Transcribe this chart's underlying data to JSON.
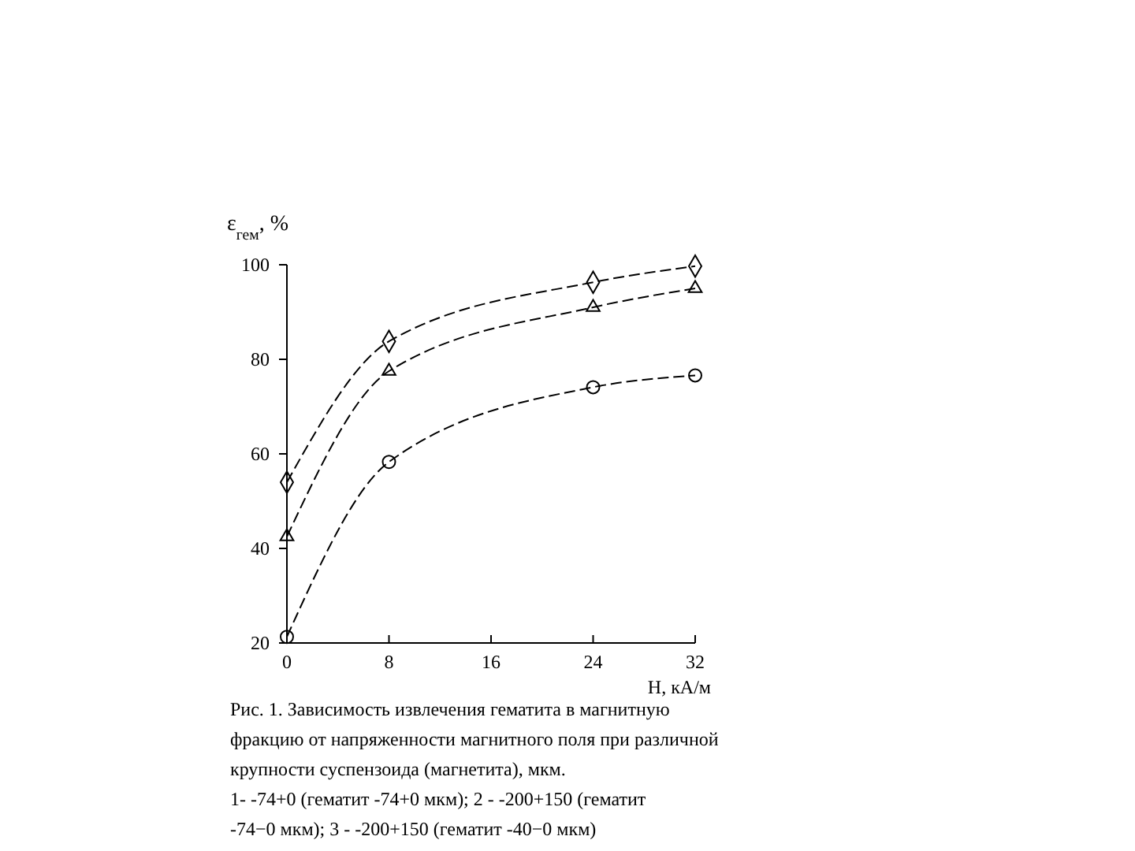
{
  "chart_data": {
    "type": "line",
    "ylabel": "ε$_{гем}$, %",
    "xlabel": "H, кА/м",
    "x": [
      0,
      8,
      24,
      32
    ],
    "xlim": [
      0,
      32
    ],
    "xticks": [
      0,
      8,
      16,
      24,
      32
    ],
    "ylim": [
      20,
      100
    ],
    "yticks": [
      20,
      40,
      60,
      80,
      100
    ],
    "series": [
      {
        "color": "#000000",
        "marker": "diamond",
        "values": [
          54,
          83.8,
          96.3,
          99.7
        ]
      },
      {
        "color": "#000000",
        "marker": "triangle",
        "values": [
          42.5,
          77.5,
          91,
          95
        ]
      },
      {
        "color": "#000000",
        "marker": "circle",
        "values": [
          21.3,
          58.3,
          74.1,
          76.6
        ]
      }
    ],
    "line_style": "dashed",
    "grid": false,
    "annotations": [
      "Рис. 1. Зависимость извлечения гематита в магнитную фракцию от напряженности магнитного поля при различной крупности суспензоида (магнетита), мкм.",
      "1- -74+0 (гематит -74+0 мкм); 2 - -200+150 (гематит -74−0 мкм); 3 - -200+150 (гематит -40−0 мкм)"
    ]
  }
}
